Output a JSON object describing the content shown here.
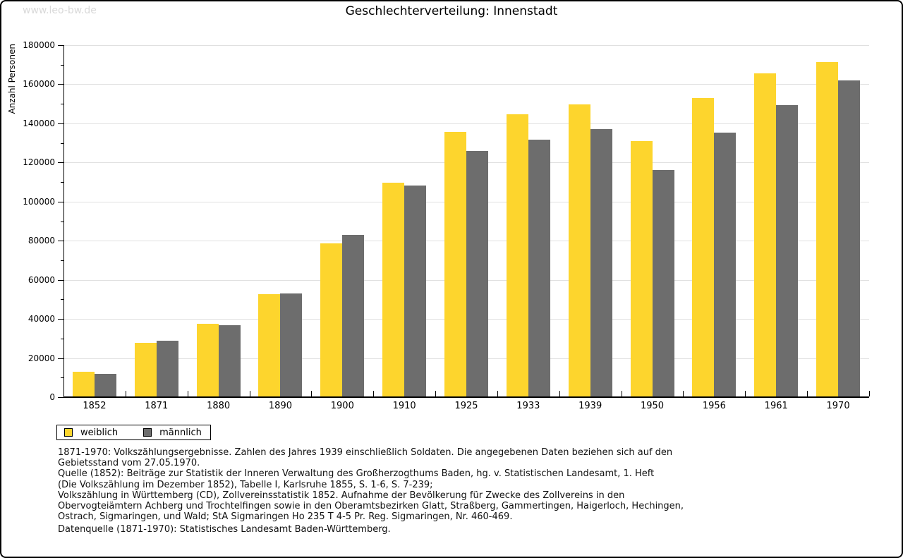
{
  "watermark": "www.leo-bw.de",
  "chart_data": {
    "type": "bar",
    "title": "Geschlechterverteilung: Innenstadt",
    "ylabel": "Anzahl Personen",
    "xlabel": "",
    "ylim": [
      0,
      180000
    ],
    "ytick_step": 20000,
    "yminor_step": 10000,
    "grid": true,
    "legend_position": "bottom-left",
    "categories": [
      "1852",
      "1871",
      "1880",
      "1890",
      "1900",
      "1910",
      "1925",
      "1933",
      "1939",
      "1950",
      "1956",
      "1961",
      "1970"
    ],
    "series": [
      {
        "name": "weiblich",
        "color": "#fdd52d",
        "values": [
          12900,
          27900,
          37500,
          52600,
          78500,
          109500,
          135800,
          144500,
          149600,
          130800,
          153000,
          165600,
          171300
        ]
      },
      {
        "name": "männlich",
        "color": "#6d6d6d",
        "values": [
          11800,
          29000,
          36800,
          53100,
          83100,
          108200,
          126000,
          131500,
          137000,
          116000,
          135300,
          149300,
          161900
        ]
      }
    ]
  },
  "footer": {
    "lines": [
      "1871-1970: Volkszählungsergebnisse. Zahlen des Jahres 1939 einschließlich Soldaten. Die angegebenen Daten beziehen sich auf den",
      "Gebietsstand vom 27.05.1970.",
      "Quelle (1852): Beiträge zur Statistik der Inneren Verwaltung des Großherzogthums Baden, hg. v. Statistischen Landesamt, 1. Heft",
      "(Die Volkszählung im Dezember 1852), Tabelle I, Karlsruhe 1855, S. 1-6, S. 7-239;",
      "Volkszählung in Württemberg (CD), Zollvereinsstatistik 1852. Aufnahme der Bevölkerung für Zwecke des Zollvereins in den",
      "Obervogteiämtern Achberg und Trochtelfingen sowie in den Oberamtsbezirken Glatt, Straßberg, Gammertingen, Haigerloch, Hechingen,",
      "Ostrach, Sigmaringen, und Wald; StA Sigmaringen Ho 235 T 4-5 Pr. Reg. Sigmaringen, Nr. 460-469."
    ],
    "datenquelle": "Datenquelle (1871-1970): Statistisches Landesamt Baden-Württemberg."
  }
}
